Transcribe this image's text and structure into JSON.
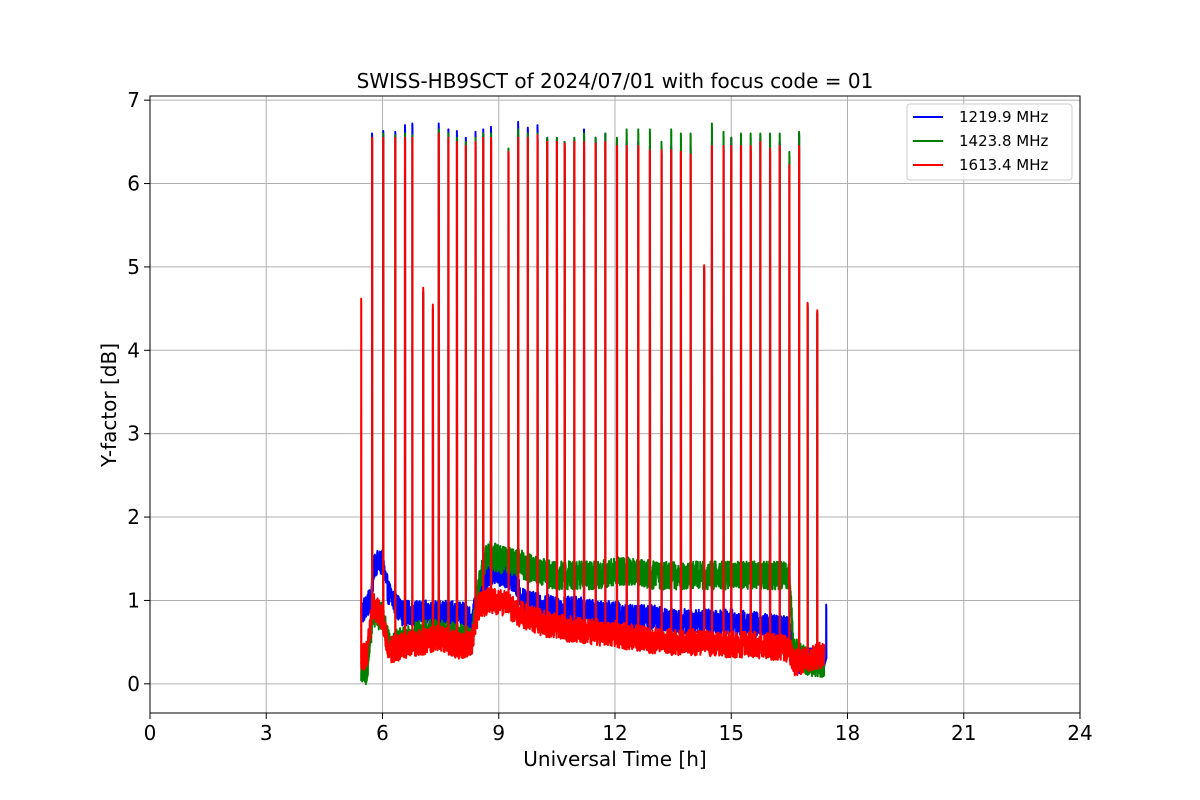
{
  "chart_data": {
    "type": "line",
    "title": "SWISS-HB9SCT of 2024/07/01 with focus code = 01",
    "xlabel": "Universal Time [h]",
    "ylabel": "Y-factor [dB]",
    "xlim": [
      0,
      24
    ],
    "ylim": [
      -0.35,
      7.05
    ],
    "xticks": [
      0,
      3,
      6,
      9,
      12,
      15,
      18,
      21,
      24
    ],
    "yticks": [
      0,
      1,
      2,
      3,
      4,
      5,
      6,
      7
    ],
    "grid": true,
    "legend": "top-right",
    "series": [
      {
        "name": "1219.9 MHz",
        "color": "#0000ff",
        "baseline": [
          [
            5.45,
            0.85
          ],
          [
            5.7,
            1.0
          ],
          [
            5.8,
            1.45
          ],
          [
            6.0,
            1.45
          ],
          [
            6.15,
            1.1
          ],
          [
            6.5,
            0.85
          ],
          [
            7.0,
            0.85
          ],
          [
            7.5,
            0.85
          ],
          [
            8.0,
            0.85
          ],
          [
            8.3,
            0.75
          ],
          [
            8.5,
            1.1
          ],
          [
            8.8,
            1.35
          ],
          [
            9.2,
            1.3
          ],
          [
            9.4,
            1.25
          ],
          [
            9.6,
            1.0
          ],
          [
            10,
            0.95
          ],
          [
            10.5,
            0.9
          ],
          [
            11,
            0.9
          ],
          [
            11.5,
            0.85
          ],
          [
            12,
            0.85
          ],
          [
            12.5,
            0.8
          ],
          [
            13,
            0.8
          ],
          [
            13.5,
            0.75
          ],
          [
            14,
            0.75
          ],
          [
            14.5,
            0.75
          ],
          [
            15,
            0.75
          ],
          [
            15.5,
            0.72
          ],
          [
            16,
            0.7
          ],
          [
            16.5,
            0.65
          ],
          [
            16.7,
            0.25
          ],
          [
            17.0,
            0.3
          ],
          [
            17.4,
            0.3
          ]
        ],
        "noise": 0.15,
        "peaks": [
          [
            5.45,
            0.9
          ],
          [
            5.6,
            1.0
          ],
          [
            5.73,
            6.6
          ],
          [
            6.02,
            6.63
          ],
          [
            6.33,
            6.62
          ],
          [
            6.58,
            6.7
          ],
          [
            6.77,
            6.72
          ],
          [
            7.05,
            4.7
          ],
          [
            7.3,
            4.5
          ],
          [
            7.45,
            6.72
          ],
          [
            7.7,
            6.65
          ],
          [
            7.92,
            6.63
          ],
          [
            8.15,
            6.55
          ],
          [
            8.4,
            6.62
          ],
          [
            8.6,
            6.65
          ],
          [
            8.8,
            6.68
          ],
          [
            9.25,
            6.4
          ],
          [
            9.5,
            6.74
          ],
          [
            9.75,
            6.67
          ],
          [
            10.0,
            6.7
          ],
          [
            10.25,
            6.55
          ],
          [
            10.5,
            6.55
          ],
          [
            10.7,
            6.5
          ],
          [
            10.95,
            6.52
          ],
          [
            11.2,
            6.65
          ],
          [
            11.5,
            6.55
          ],
          [
            11.75,
            6.6
          ],
          [
            12.05,
            6.5
          ],
          [
            12.3,
            6.5
          ],
          [
            12.6,
            6.5
          ],
          [
            12.9,
            6.45
          ],
          [
            13.2,
            6.45
          ],
          [
            13.45,
            6.45
          ],
          [
            13.7,
            6.4
          ],
          [
            13.95,
            6.45
          ],
          [
            14.3,
            5.0
          ],
          [
            14.5,
            6.5
          ],
          [
            14.8,
            6.5
          ],
          [
            15.0,
            6.55
          ],
          [
            15.25,
            6.5
          ],
          [
            15.5,
            6.45
          ],
          [
            15.75,
            6.55
          ],
          [
            16.0,
            6.45
          ],
          [
            16.25,
            6.5
          ],
          [
            16.5,
            6.25
          ],
          [
            16.75,
            6.6
          ],
          [
            16.97,
            4.55
          ],
          [
            17.22,
            4.45
          ],
          [
            17.45,
            0.95
          ]
        ]
      },
      {
        "name": "1423.8 MHz",
        "color": "#008000",
        "baseline": [
          [
            5.45,
            0.2
          ],
          [
            5.6,
            0.15
          ],
          [
            5.75,
            0.85
          ],
          [
            6.0,
            0.8
          ],
          [
            6.15,
            0.5
          ],
          [
            6.5,
            0.5
          ],
          [
            7.0,
            0.6
          ],
          [
            7.5,
            0.6
          ],
          [
            8.0,
            0.55
          ],
          [
            8.3,
            0.5
          ],
          [
            8.5,
            1.2
          ],
          [
            8.7,
            1.55
          ],
          [
            9.0,
            1.5
          ],
          [
            9.5,
            1.45
          ],
          [
            10,
            1.35
          ],
          [
            10.5,
            1.3
          ],
          [
            11,
            1.3
          ],
          [
            11.5,
            1.3
          ],
          [
            12,
            1.35
          ],
          [
            12.5,
            1.35
          ],
          [
            13,
            1.3
          ],
          [
            13.5,
            1.3
          ],
          [
            14,
            1.3
          ],
          [
            14.5,
            1.3
          ],
          [
            15,
            1.3
          ],
          [
            15.5,
            1.3
          ],
          [
            16,
            1.3
          ],
          [
            16.5,
            1.3
          ],
          [
            16.6,
            0.4
          ],
          [
            17.0,
            0.25
          ],
          [
            17.4,
            0.25
          ]
        ],
        "noise": 0.17,
        "peaks": [
          [
            5.73,
            6.55
          ],
          [
            6.02,
            6.6
          ],
          [
            6.33,
            6.58
          ],
          [
            6.58,
            6.6
          ],
          [
            6.77,
            6.58
          ],
          [
            7.05,
            4.7
          ],
          [
            7.3,
            4.5
          ],
          [
            7.45,
            6.65
          ],
          [
            7.7,
            6.6
          ],
          [
            7.92,
            6.55
          ],
          [
            8.15,
            6.5
          ],
          [
            8.4,
            6.55
          ],
          [
            8.6,
            6.6
          ],
          [
            8.8,
            6.6
          ],
          [
            9.25,
            6.42
          ],
          [
            9.5,
            6.65
          ],
          [
            9.75,
            6.6
          ],
          [
            10.0,
            6.6
          ],
          [
            10.25,
            6.55
          ],
          [
            10.5,
            6.55
          ],
          [
            10.7,
            6.5
          ],
          [
            10.95,
            6.55
          ],
          [
            11.2,
            6.6
          ],
          [
            11.5,
            6.55
          ],
          [
            11.75,
            6.6
          ],
          [
            12.05,
            6.55
          ],
          [
            12.3,
            6.65
          ],
          [
            12.6,
            6.65
          ],
          [
            12.9,
            6.65
          ],
          [
            13.2,
            6.5
          ],
          [
            13.45,
            6.65
          ],
          [
            13.7,
            6.6
          ],
          [
            13.95,
            6.6
          ],
          [
            14.3,
            5.0
          ],
          [
            14.5,
            6.72
          ],
          [
            14.8,
            6.62
          ],
          [
            15.0,
            6.55
          ],
          [
            15.25,
            6.6
          ],
          [
            15.5,
            6.6
          ],
          [
            15.75,
            6.6
          ],
          [
            16.0,
            6.6
          ],
          [
            16.25,
            6.6
          ],
          [
            16.5,
            6.38
          ],
          [
            16.75,
            6.62
          ],
          [
            16.97,
            4.55
          ],
          [
            17.22,
            4.45
          ]
        ]
      },
      {
        "name": "1613.4 MHz",
        "color": "#ff0000",
        "baseline": [
          [
            5.45,
            0.3
          ],
          [
            5.6,
            0.35
          ],
          [
            5.75,
            0.95
          ],
          [
            6.0,
            0.8
          ],
          [
            6.15,
            0.4
          ],
          [
            6.5,
            0.45
          ],
          [
            7.0,
            0.5
          ],
          [
            7.5,
            0.55
          ],
          [
            8.0,
            0.45
          ],
          [
            8.3,
            0.5
          ],
          [
            8.5,
            0.95
          ],
          [
            8.8,
            1.0
          ],
          [
            9.2,
            0.95
          ],
          [
            9.5,
            0.85
          ],
          [
            10,
            0.75
          ],
          [
            10.5,
            0.68
          ],
          [
            11,
            0.65
          ],
          [
            11.5,
            0.62
          ],
          [
            12,
            0.6
          ],
          [
            12.5,
            0.55
          ],
          [
            13,
            0.52
          ],
          [
            13.5,
            0.5
          ],
          [
            14,
            0.5
          ],
          [
            14.5,
            0.48
          ],
          [
            15,
            0.47
          ],
          [
            15.5,
            0.47
          ],
          [
            16,
            0.45
          ],
          [
            16.5,
            0.42
          ],
          [
            16.6,
            0.25
          ],
          [
            17.0,
            0.3
          ],
          [
            17.4,
            0.35
          ]
        ],
        "noise": 0.16,
        "peaks": [
          [
            5.45,
            4.62
          ],
          [
            5.73,
            6.55
          ],
          [
            6.02,
            6.55
          ],
          [
            6.33,
            6.55
          ],
          [
            6.58,
            6.55
          ],
          [
            6.77,
            6.55
          ],
          [
            7.05,
            4.75
          ],
          [
            7.3,
            4.55
          ],
          [
            7.45,
            6.6
          ],
          [
            7.7,
            6.55
          ],
          [
            7.92,
            6.5
          ],
          [
            8.15,
            6.45
          ],
          [
            8.4,
            6.5
          ],
          [
            8.6,
            6.55
          ],
          [
            8.8,
            6.55
          ],
          [
            9.25,
            6.38
          ],
          [
            9.5,
            6.55
          ],
          [
            9.75,
            6.55
          ],
          [
            10.0,
            6.58
          ],
          [
            10.25,
            6.5
          ],
          [
            10.5,
            6.5
          ],
          [
            10.7,
            6.48
          ],
          [
            10.95,
            6.5
          ],
          [
            11.2,
            6.5
          ],
          [
            11.5,
            6.48
          ],
          [
            11.75,
            6.5
          ],
          [
            12.05,
            6.45
          ],
          [
            12.3,
            6.45
          ],
          [
            12.6,
            6.45
          ],
          [
            12.9,
            6.4
          ],
          [
            13.2,
            6.4
          ],
          [
            13.45,
            6.4
          ],
          [
            13.7,
            6.38
          ],
          [
            13.95,
            6.35
          ],
          [
            14.3,
            5.02
          ],
          [
            14.5,
            6.45
          ],
          [
            14.8,
            6.45
          ],
          [
            15.0,
            6.45
          ],
          [
            15.25,
            6.45
          ],
          [
            15.5,
            6.45
          ],
          [
            15.75,
            6.5
          ],
          [
            16.0,
            6.42
          ],
          [
            16.25,
            6.45
          ],
          [
            16.5,
            6.22
          ],
          [
            16.75,
            6.45
          ],
          [
            16.97,
            4.57
          ],
          [
            17.22,
            4.48
          ]
        ]
      }
    ]
  }
}
